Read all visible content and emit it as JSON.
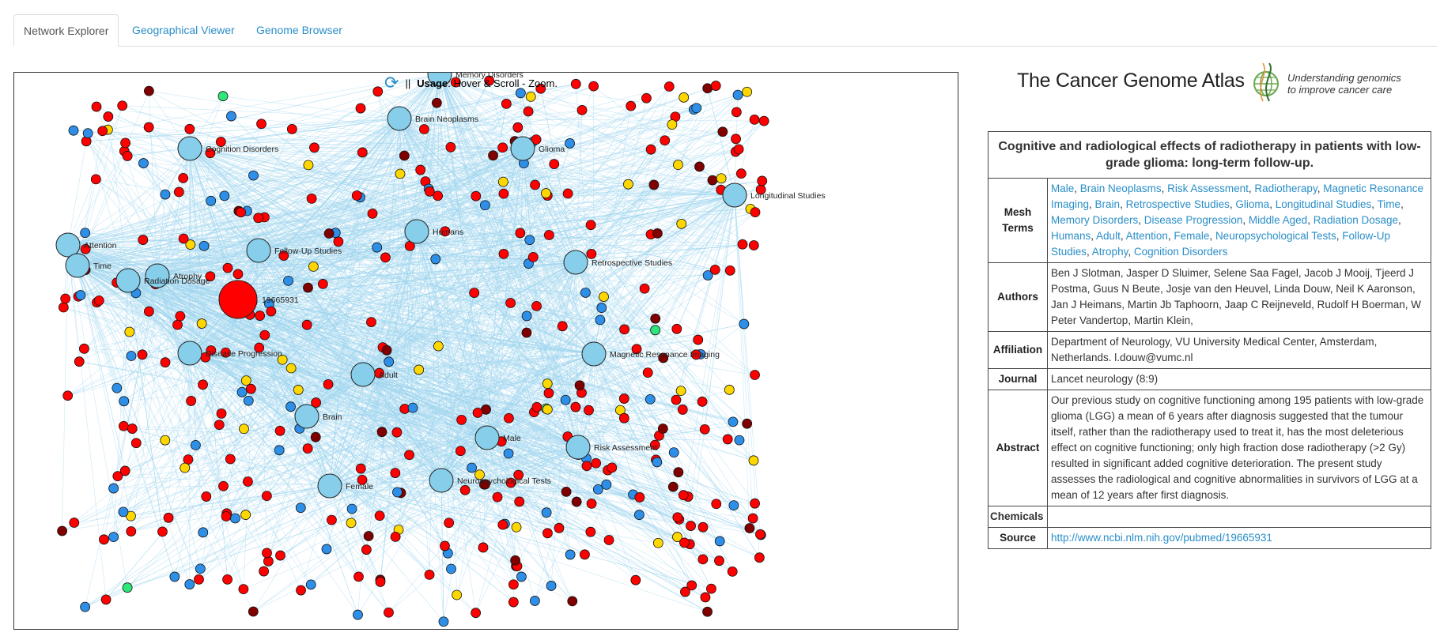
{
  "tabs": [
    {
      "label": "Network Explorer",
      "active": true
    },
    {
      "label": "Geographical Viewer",
      "active": false
    },
    {
      "label": "Genome Browser",
      "active": false
    }
  ],
  "usage": {
    "separator": "||",
    "label": "Usage",
    "text": ": Hover & Scroll - Zoom."
  },
  "logo": {
    "title": "The Cancer Genome Atlas",
    "tagline_1": "Understanding genomics",
    "tagline_2": "to improve cancer care"
  },
  "colors": {
    "edge": "#9fd6ee",
    "term_node": "#87ceeb",
    "paper_node": "#ff0000",
    "dark_node": "#800000",
    "blue_node": "#2e8fe8",
    "yellow_node": "#ffd700",
    "green_node": "#2ee67a",
    "link": "#2a8ec8"
  },
  "network": {
    "selected_paper": "19665931",
    "term_nodes": [
      "Memory Disorders",
      "Brain Neoplasms",
      "Cognition Disorders",
      "Glioma",
      "Longitudinal Studies",
      "Humans",
      "Attention",
      "Time",
      "Follow-Up Studies",
      "Atrophy",
      "Radiation Dosage",
      "Retrospective Studies",
      "Disease Progression",
      "Magnetic Resonance Imaging",
      "Adult",
      "Brain",
      "Male",
      "Risk Assessment",
      "Female",
      "Neuropsychological Tests"
    ]
  },
  "paper": {
    "title": "Cognitive and radiological effects of radiotherapy in patients with low-grade glioma: long-term follow-up.",
    "labels": {
      "mesh": "Mesh Terms",
      "authors": "Authors",
      "affiliation": "Affiliation",
      "journal": "Journal",
      "abstract": "Abstract",
      "chemicals": "Chemicals",
      "source": "Source"
    },
    "mesh_terms": [
      "Male",
      "Brain Neoplasms",
      "Risk Assessment",
      "Radiotherapy",
      "Magnetic Resonance Imaging",
      "Brain",
      "Retrospective Studies",
      "Glioma",
      "Longitudinal Studies",
      "Time",
      "Memory Disorders",
      "Disease Progression",
      "Middle Aged",
      "Radiation Dosage",
      "Humans",
      "Adult",
      "Attention",
      "Female",
      "Neuropsychological Tests",
      "Follow-Up Studies",
      "Atrophy",
      "Cognition Disorders"
    ],
    "authors": "Ben J Slotman, Jasper D Sluimer, Selene Saa Fagel, Jacob J Mooij, Tjeerd J Postma, Guus N Beute, Josje van den Heuvel, Linda Douw, Neil K Aaronson, Jan J Heimans, Martin Jb Taphoorn, Jaap C Reijneveld, Rudolf H Boerman, W Peter Vandertop, Martin Klein,",
    "affiliation": "Department of Neurology, VU University Medical Center, Amsterdam, Netherlands. l.douw@vumc.nl",
    "journal": "Lancet neurology (8:9)",
    "abstract": "Our previous study on cognitive functioning among 195 patients with low-grade glioma (LGG) a mean of 6 years after diagnosis suggested that the tumour itself, rather than the radiotherapy used to treat it, has the most deleterious effect on cognitive functioning; only high fraction dose radiotherapy (>2 Gy) resulted in significant added cognitive deterioration. The present study assesses the radiological and cognitive abnormalities in survivors of LGG at a mean of 12 years after first diagnosis.",
    "chemicals": "",
    "source": "http://www.ncbi.nlm.nih.gov/pubmed/19665931"
  }
}
